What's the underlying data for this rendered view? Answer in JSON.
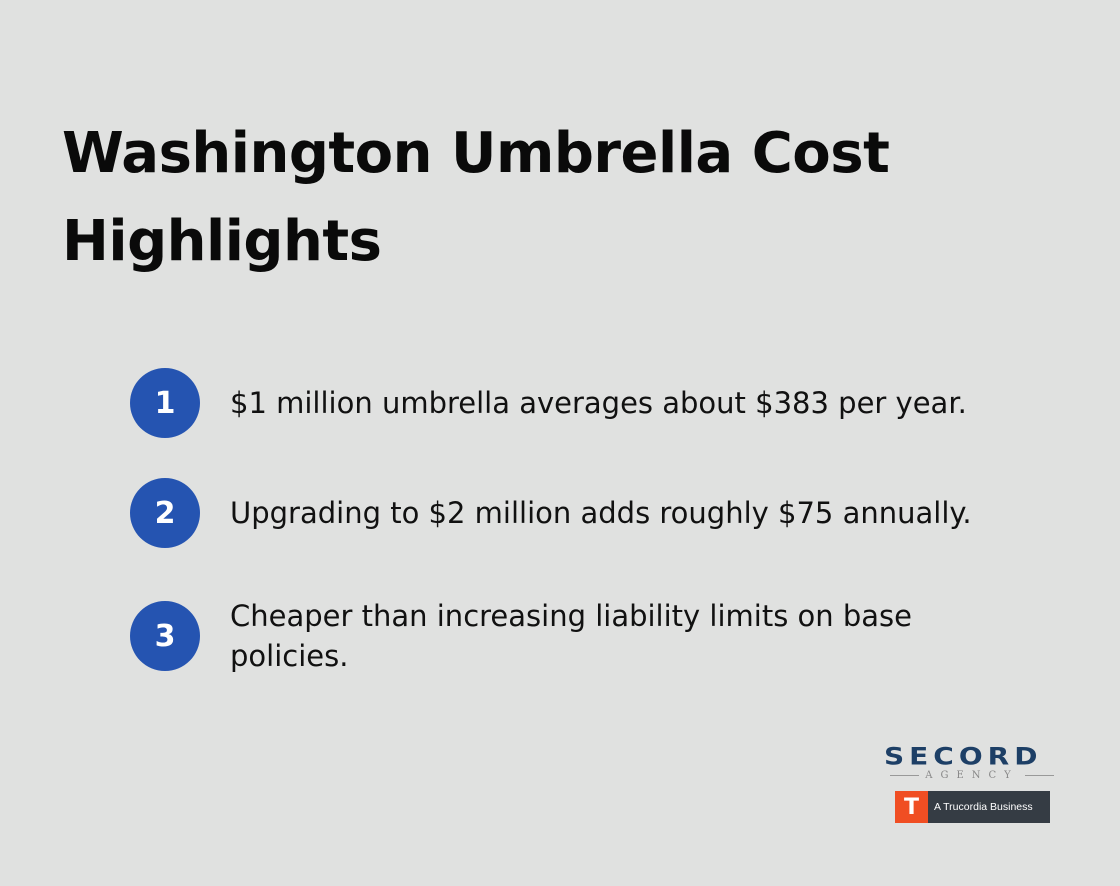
{
  "title": "Washington Umbrella Cost Highlights",
  "items": [
    {
      "number": "1",
      "text": "$1 million umbrella averages about $383 per year."
    },
    {
      "number": "2",
      "text": "Upgrading to $2 million adds roughly $75 annually."
    },
    {
      "number": "3",
      "text": "Cheaper than increasing liability limits on base policies."
    }
  ],
  "logo": {
    "name": "SECORD",
    "sub": "AGENCY",
    "badge_mark": "T",
    "badge_text": "A Trucordia Business"
  },
  "colors": {
    "background": "#e0e1e0",
    "accent": "#2554b1",
    "logo_blue": "#1d3f66",
    "badge_orange": "#f04e23",
    "badge_dark": "#353c44"
  }
}
